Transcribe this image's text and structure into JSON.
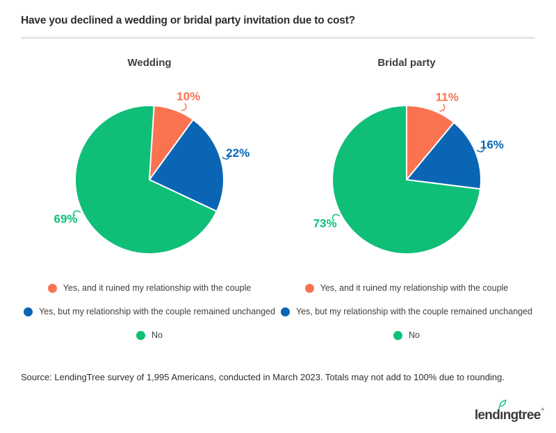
{
  "page": {
    "title": "Have you declined a wedding or bridal party invitation due to cost?",
    "source": "Source: LendingTree survey of 1,995 Americans, conducted in March 2023. Totals may not add to 100% due to rounding."
  },
  "colors": {
    "orange": "#FA7350",
    "blue": "#0A66B5",
    "green": "#0FBF77",
    "divider": "#E5E5E5",
    "text_dark": "#2D2D2D",
    "legend_text": "#3E3E3E"
  },
  "legend_labels": [
    "Yes, and it ruined my relationship with the couple",
    "Yes, but my relationship with the couple remained unchanged",
    "No"
  ],
  "logo": {
    "full": "lendingtree",
    "pre_i": "lend",
    "dotless_i": "ı",
    "post_i": "ngtree",
    "trademark": "®"
  },
  "chart_data": [
    {
      "type": "pie",
      "title": "Wedding",
      "categories": [
        "Yes, and it ruined my relationship with the couple",
        "Yes, but my relationship with the couple remained unchanged",
        "No"
      ],
      "values": [
        10,
        22,
        69
      ],
      "unit": "%",
      "slice_labels": [
        "10%",
        "22%",
        "69%"
      ],
      "colors": [
        "#FA7350",
        "#0A66B5",
        "#0FBF77"
      ],
      "start_angle_deg": 0,
      "direction": "clockwise",
      "label_angles_deg": [
        25,
        73,
        245
      ],
      "legend_position": "bottom"
    },
    {
      "type": "pie",
      "title": "Bridal party",
      "categories": [
        "Yes, and it ruined my relationship with the couple",
        "Yes, but my relationship with the couple remained unchanged",
        "No"
      ],
      "values": [
        11,
        16,
        73
      ],
      "unit": "%",
      "slice_labels": [
        "11%",
        "16%",
        "73%"
      ],
      "colors": [
        "#FA7350",
        "#0A66B5",
        "#0FBF77"
      ],
      "start_angle_deg": 0,
      "direction": "clockwise",
      "label_angles_deg": [
        26,
        67.5,
        242
      ],
      "legend_position": "bottom"
    }
  ]
}
